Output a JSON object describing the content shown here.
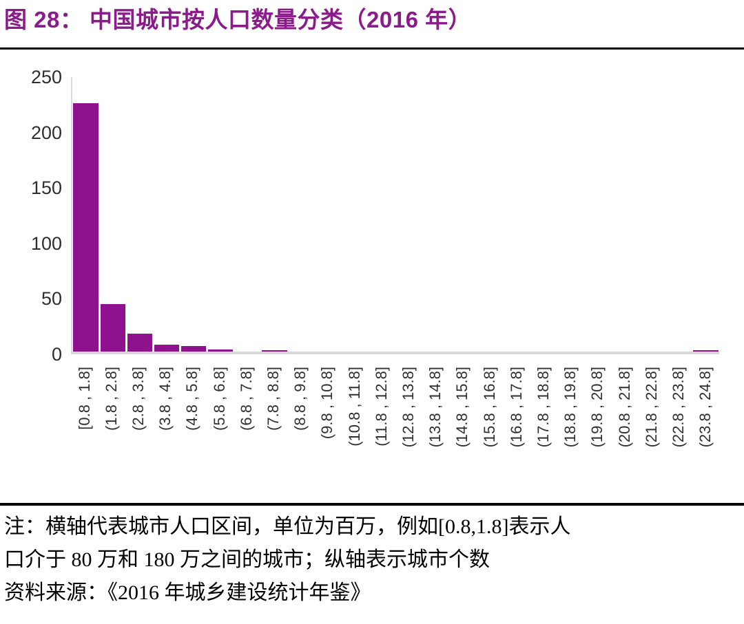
{
  "figure": {
    "title": "图 28： 中国城市按人口数量分类（2016 年）",
    "note_lines": [
      "注：横轴代表城市人口区间，单位为百万，例如[0.8,1.8]表示人",
      "口介于 80 万和 180 万之间的城市；纵轴表示城市个数",
      "资料来源：《2016 年城乡建设统计年鉴》"
    ]
  },
  "colors": {
    "title": "#8B1A8B",
    "bar": "#8E128E",
    "axis": "#D9D9D9",
    "tick_text": "#2F2F2F",
    "rule": "#000000"
  },
  "chart_data": {
    "type": "bar",
    "title": "中国城市按人口数量分类（2016 年）",
    "categories": [
      "[0.8 , 1.8]",
      "(1.8 , 2.8]",
      "(2.8 , 3.8]",
      "(3.8 , 4.8]",
      "(4.8 , 5.8]",
      "(5.8 , 6.8]",
      "(6.8 , 7.8]",
      "(7.8 , 8.8]",
      "(8.8 , 9.8]",
      "(9.8 , 10.8]",
      "(10.8 , 11.8]",
      "(11.8 , 12.8]",
      "(12.8 , 13.8]",
      "(13.8 , 14.8]",
      "(14.8 , 15.8]",
      "(15.8 , 16.8]",
      "(16.8 , 17.8]",
      "(17.8 , 18.8]",
      "(18.8 , 19.8]",
      "(19.8 , 20.8]",
      "(20.8 , 21.8]",
      "(21.8 , 22.8]",
      "(22.8 , 23.8]",
      "(23.8 , 24.8]"
    ],
    "values": [
      224,
      43,
      16,
      6,
      5,
      2,
      0,
      1,
      0,
      0,
      0,
      0,
      0,
      0,
      0,
      0,
      0,
      0,
      0,
      0,
      0,
      0,
      0,
      1
    ],
    "xlabel": "",
    "ylabel": "",
    "ylim": [
      0,
      250
    ],
    "yticks": [
      0,
      50,
      100,
      150,
      200,
      250
    ],
    "grid": false,
    "legend": false,
    "bar_color": "#8E128E"
  }
}
